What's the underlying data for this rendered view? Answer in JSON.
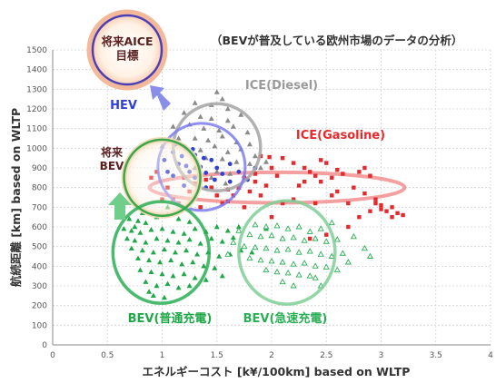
{
  "chart_data": {
    "type": "scatter",
    "subtitle": "（BEVが普及している欧州市場のデータの分析）",
    "xlabel": "エネルギーコスト [k¥/100km] based on WLTP",
    "ylabel": "航続距離 [km]  based on WLTP",
    "xlim": [
      0,
      4
    ],
    "ylim": [
      0,
      1500
    ],
    "x_ticks": [
      "0",
      "0.5",
      "1",
      "1.5",
      "2",
      "2.5",
      "3",
      "3.5",
      "4"
    ],
    "y_ticks": [
      "0",
      "100",
      "200",
      "300",
      "400",
      "500",
      "600",
      "700",
      "800",
      "900",
      "1000",
      "1100",
      "1200",
      "1300",
      "1400",
      "1500"
    ],
    "grid": true,
    "colors": {
      "ice_diesel": "#999999",
      "ice_gasoline": "#e8282a",
      "hev": "#2f3fd8",
      "bev_normal": "#1ea848",
      "bev_fast": "#2aae55",
      "target_ring": "#5a3fb5",
      "bev_future_ring": "#8ab54a"
    },
    "series": [
      {
        "name": "ICE(Diesel)",
        "marker": "triangle-gray",
        "points": [
          [
            1.3,
            1230
          ],
          [
            1.45,
            1220
          ],
          [
            1.5,
            1285
          ],
          [
            1.55,
            1250
          ],
          [
            1.6,
            1200
          ],
          [
            1.2,
            1180
          ],
          [
            1.35,
            1160
          ],
          [
            1.45,
            1150
          ],
          [
            1.6,
            1140
          ],
          [
            1.72,
            1170
          ],
          [
            1.1,
            1110
          ],
          [
            1.25,
            1120
          ],
          [
            1.38,
            1100
          ],
          [
            1.52,
            1090
          ],
          [
            1.65,
            1110
          ],
          [
            1.78,
            1080
          ],
          [
            1.15,
            1050
          ],
          [
            1.3,
            1050
          ],
          [
            1.42,
            1040
          ],
          [
            1.55,
            1060
          ],
          [
            1.68,
            1030
          ],
          [
            1.8,
            1020
          ],
          [
            1.22,
            1000
          ],
          [
            1.35,
            990
          ],
          [
            1.48,
            1010
          ],
          [
            1.6,
            980
          ],
          [
            1.72,
            995
          ],
          [
            1.85,
            960
          ],
          [
            1.4,
            950
          ],
          [
            1.55,
            945
          ],
          [
            1.68,
            930
          ],
          [
            1.8,
            920
          ],
          [
            1.9,
            900
          ],
          [
            1.5,
            880
          ],
          [
            1.62,
            870
          ],
          [
            1.75,
            860
          ],
          [
            1.3,
            900
          ],
          [
            1.45,
            850
          ],
          [
            1.58,
            820
          ],
          [
            1.7,
            800
          ],
          [
            1.0,
            1010
          ],
          [
            1.95,
            930
          ]
        ]
      },
      {
        "name": "ICE(Gasoline)",
        "marker": "square-red",
        "points": [
          [
            1.9,
            960
          ],
          [
            1.98,
            955
          ],
          [
            2.1,
            950
          ],
          [
            2.2,
            925
          ],
          [
            2.3,
            900
          ],
          [
            2.35,
            880
          ],
          [
            2.45,
            940
          ],
          [
            2.5,
            925
          ],
          [
            2.6,
            890
          ],
          [
            2.4,
            860
          ],
          [
            2.55,
            850
          ],
          [
            2.8,
            880
          ],
          [
            2.85,
            900
          ],
          [
            2.9,
            860
          ],
          [
            2.65,
            870
          ],
          [
            2.3,
            830
          ],
          [
            2.25,
            810
          ],
          [
            2.0,
            900
          ],
          [
            2.05,
            860
          ],
          [
            1.85,
            870
          ],
          [
            1.75,
            850
          ],
          [
            1.7,
            800
          ],
          [
            1.6,
            790
          ],
          [
            1.5,
            760
          ],
          [
            1.45,
            800
          ],
          [
            1.3,
            820
          ],
          [
            1.2,
            850
          ],
          [
            1.25,
            780
          ],
          [
            1.1,
            740
          ],
          [
            1.15,
            720
          ],
          [
            1.05,
            800
          ],
          [
            0.95,
            880
          ],
          [
            0.9,
            850
          ],
          [
            1.35,
            700
          ],
          [
            1.6,
            730
          ],
          [
            1.9,
            760
          ],
          [
            2.2,
            740
          ],
          [
            2.4,
            720
          ],
          [
            2.6,
            780
          ],
          [
            2.55,
            760
          ],
          [
            2.7,
            720
          ],
          [
            2.75,
            800
          ],
          [
            2.95,
            720
          ],
          [
            3.0,
            710
          ],
          [
            3.05,
            680
          ],
          [
            3.1,
            650
          ],
          [
            3.15,
            670
          ],
          [
            3.2,
            660
          ],
          [
            3.1,
            700
          ],
          [
            3.0,
            690
          ],
          [
            2.85,
            770
          ],
          [
            2.9,
            680
          ],
          [
            2.8,
            650
          ],
          [
            2.7,
            600
          ],
          [
            2.5,
            560
          ],
          [
            2.35,
            540
          ],
          [
            2.1,
            720
          ],
          [
            1.95,
            810
          ],
          [
            1.8,
            780
          ],
          [
            2.0,
            650
          ],
          [
            1.55,
            720
          ],
          [
            1.65,
            760
          ],
          [
            1.75,
            700
          ],
          [
            2.95,
            740
          ],
          [
            2.45,
            830
          ],
          [
            1.0,
            740
          ],
          [
            1.4,
            840
          ],
          [
            1.85,
            830
          ]
        ]
      },
      {
        "name": "HEV",
        "marker": "dot-blue",
        "points": [
          [
            1.05,
            1040
          ],
          [
            1.12,
            1020
          ],
          [
            1.2,
            1010
          ],
          [
            1.28,
            995
          ],
          [
            1.1,
            980
          ],
          [
            1.18,
            960
          ],
          [
            1.3,
            965
          ],
          [
            1.38,
            950
          ],
          [
            1.45,
            940
          ],
          [
            1.02,
            940
          ],
          [
            1.15,
            920
          ],
          [
            1.22,
            910
          ],
          [
            1.35,
            905
          ],
          [
            1.5,
            900
          ],
          [
            1.62,
            920
          ],
          [
            1.25,
            880
          ],
          [
            1.4,
            875
          ],
          [
            1.55,
            870
          ],
          [
            1.7,
            880
          ],
          [
            1.1,
            860
          ],
          [
            1.3,
            850
          ],
          [
            1.48,
            840
          ],
          [
            1.62,
            830
          ],
          [
            1.78,
            840
          ],
          [
            1.2,
            810
          ],
          [
            1.4,
            800
          ],
          [
            1.85,
            900
          ],
          [
            1.05,
            880
          ]
        ]
      },
      {
        "name": "BEV(普通充電)",
        "marker": "triangle-green",
        "points": [
          [
            0.7,
            640
          ],
          [
            0.78,
            630
          ],
          [
            0.85,
            620
          ],
          [
            0.95,
            650
          ],
          [
            1.05,
            660
          ],
          [
            1.15,
            640
          ],
          [
            1.25,
            625
          ],
          [
            0.65,
            590
          ],
          [
            0.72,
            580
          ],
          [
            0.8,
            570
          ],
          [
            0.9,
            585
          ],
          [
            1.0,
            590
          ],
          [
            1.1,
            575
          ],
          [
            1.2,
            565
          ],
          [
            1.3,
            590
          ],
          [
            1.4,
            575
          ],
          [
            1.5,
            600
          ],
          [
            1.6,
            580
          ],
          [
            1.7,
            600
          ],
          [
            0.68,
            540
          ],
          [
            0.75,
            530
          ],
          [
            0.85,
            520
          ],
          [
            0.95,
            540
          ],
          [
            1.05,
            530
          ],
          [
            1.15,
            520
          ],
          [
            1.25,
            535
          ],
          [
            1.35,
            515
          ],
          [
            1.45,
            540
          ],
          [
            1.55,
            525
          ],
          [
            1.65,
            545
          ],
          [
            0.72,
            490
          ],
          [
            0.82,
            480
          ],
          [
            0.92,
            470
          ],
          [
            1.02,
            485
          ],
          [
            1.12,
            470
          ],
          [
            1.22,
            480
          ],
          [
            1.32,
            460
          ],
          [
            1.42,
            470
          ],
          [
            1.52,
            450
          ],
          [
            1.62,
            460
          ],
          [
            1.72,
            480
          ],
          [
            1.82,
            470
          ],
          [
            0.78,
            440
          ],
          [
            0.88,
            430
          ],
          [
            0.98,
            420
          ],
          [
            1.08,
            430
          ],
          [
            1.18,
            410
          ],
          [
            1.28,
            420
          ],
          [
            1.38,
            400
          ],
          [
            1.48,
            390
          ],
          [
            0.8,
            380
          ],
          [
            0.9,
            370
          ],
          [
            1.0,
            360
          ],
          [
            1.1,
            350
          ],
          [
            1.2,
            360
          ],
          [
            1.3,
            340
          ],
          [
            0.85,
            320
          ],
          [
            0.95,
            300
          ],
          [
            1.05,
            310
          ],
          [
            1.15,
            290
          ],
          [
            0.92,
            250
          ],
          [
            1.02,
            240
          ],
          [
            0.88,
            270
          ],
          [
            1.25,
            300
          ],
          [
            1.55,
            350
          ],
          [
            1.4,
            330
          ],
          [
            0.75,
            600
          ],
          [
            1.95,
            590
          ],
          [
            1.05,
            700
          ],
          [
            0.82,
            670
          ]
        ]
      },
      {
        "name": "BEV(急速充電)",
        "marker": "triangle-outline-green",
        "points": [
          [
            1.85,
            610
          ],
          [
            1.95,
            600
          ],
          [
            2.05,
            605
          ],
          [
            2.15,
            590
          ],
          [
            2.25,
            600
          ],
          [
            2.35,
            575
          ],
          [
            2.45,
            590
          ],
          [
            1.8,
            560
          ],
          [
            1.9,
            550
          ],
          [
            2.0,
            555
          ],
          [
            2.1,
            540
          ],
          [
            2.2,
            545
          ],
          [
            2.3,
            530
          ],
          [
            2.4,
            540
          ],
          [
            2.5,
            525
          ],
          [
            2.6,
            535
          ],
          [
            1.75,
            500
          ],
          [
            1.85,
            495
          ],
          [
            1.95,
            490
          ],
          [
            2.05,
            480
          ],
          [
            2.15,
            485
          ],
          [
            2.25,
            470
          ],
          [
            2.35,
            475
          ],
          [
            2.45,
            460
          ],
          [
            2.55,
            450
          ],
          [
            2.65,
            465
          ],
          [
            1.8,
            440
          ],
          [
            1.9,
            430
          ],
          [
            2.0,
            425
          ],
          [
            2.1,
            420
          ],
          [
            2.2,
            410
          ],
          [
            2.3,
            415
          ],
          [
            2.4,
            400
          ],
          [
            2.5,
            395
          ],
          [
            1.95,
            380
          ],
          [
            2.05,
            370
          ],
          [
            2.15,
            365
          ],
          [
            2.25,
            355
          ],
          [
            2.35,
            350
          ],
          [
            2.1,
            320
          ],
          [
            2.2,
            300
          ],
          [
            2.4,
            340
          ],
          [
            2.6,
            380
          ],
          [
            2.7,
            420
          ],
          [
            2.85,
            490
          ],
          [
            2.9,
            450
          ],
          [
            1.7,
            580
          ],
          [
            2.55,
            620
          ],
          [
            1.65,
            520
          ],
          [
            2.75,
            550
          ],
          [
            1.6,
            460
          ],
          [
            2.45,
            300
          ]
        ]
      }
    ],
    "annotations": [
      {
        "id": "target",
        "lines": [
          "将来AICE",
          "目標"
        ]
      },
      {
        "id": "hev",
        "text": "HEV"
      },
      {
        "id": "ice_diesel",
        "text": "ICE(Diesel)"
      },
      {
        "id": "ice_gasoline",
        "text": "ICE(Gasoline)"
      },
      {
        "id": "future_bev",
        "lines": [
          "将来",
          "BEV"
        ]
      },
      {
        "id": "bev_normal",
        "text": "BEV(普通充電)"
      },
      {
        "id": "bev_fast",
        "text": "BEV(急速充電)"
      }
    ]
  }
}
